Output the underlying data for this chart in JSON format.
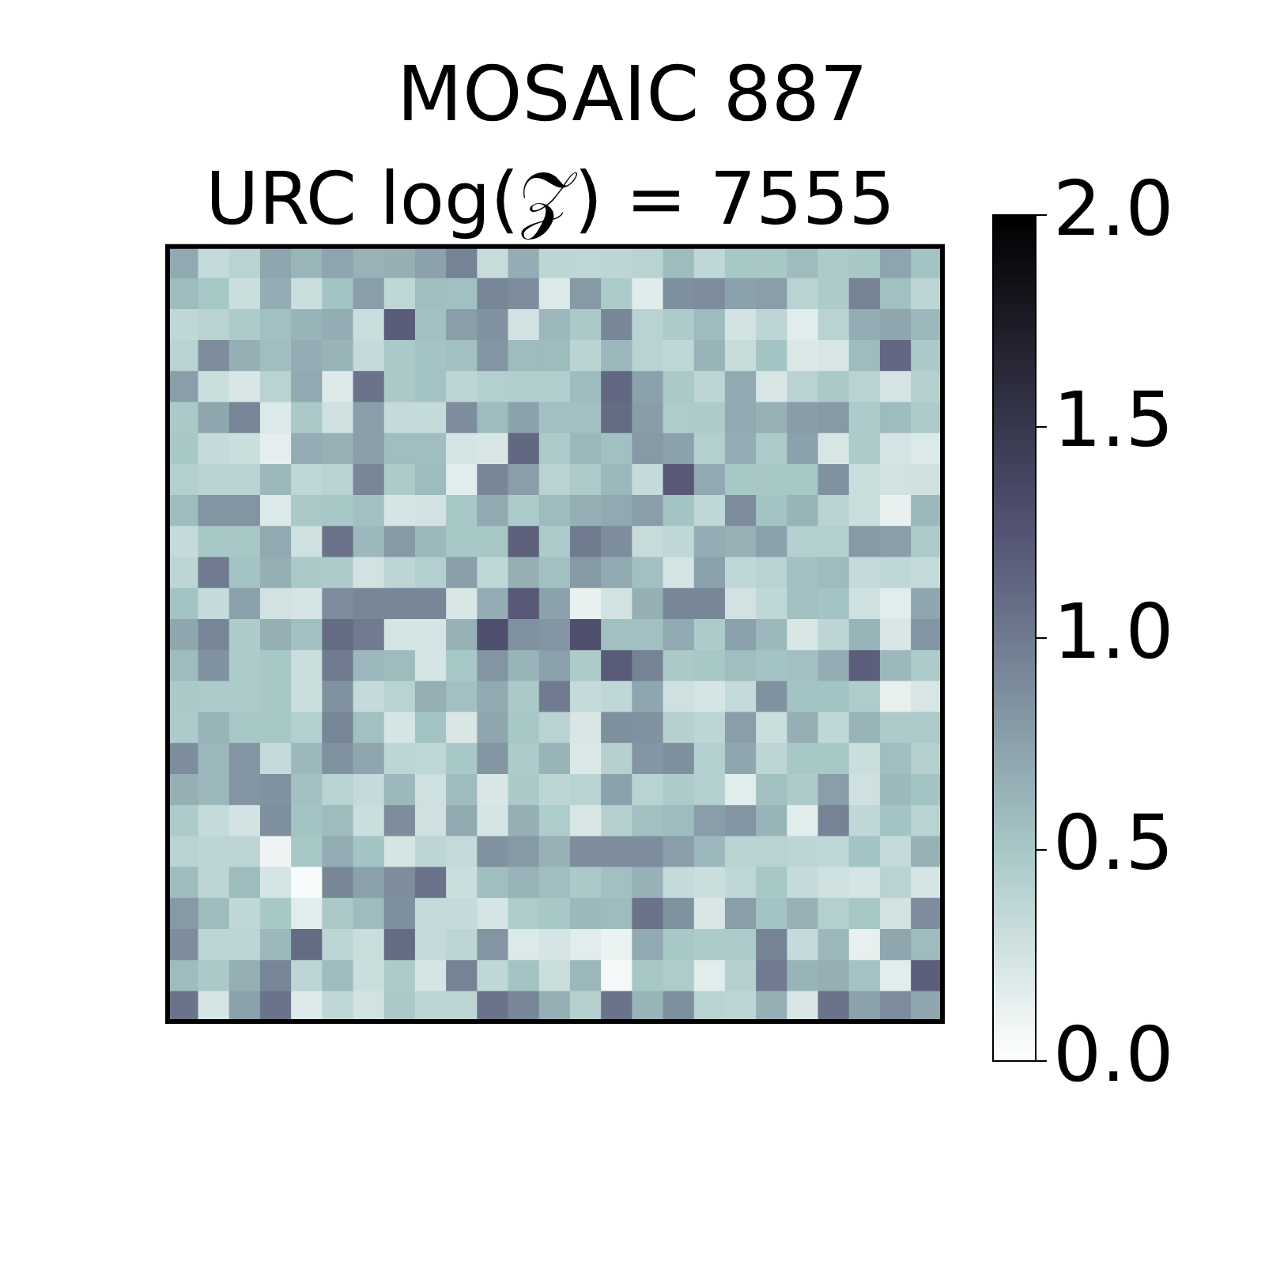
{
  "chart_data": {
    "type": "heatmap",
    "title": "MOSAIC 887",
    "subtitle": "URC log(𝒵) = 7555",
    "categories": [
      null,
      null,
      null,
      null,
      null,
      null,
      null,
      null,
      null,
      null,
      null,
      null,
      null,
      null,
      null,
      null,
      null,
      null,
      null,
      null,
      null,
      null,
      null,
      null,
      null
    ],
    "y_categories": [
      null,
      null,
      null,
      null,
      null,
      null,
      null,
      null,
      null,
      null,
      null,
      null,
      null,
      null,
      null,
      null,
      null,
      null,
      null,
      null,
      null,
      null,
      null,
      null,
      null
    ],
    "cells": [
      [
        0.7,
        0.33,
        0.4,
        0.72,
        0.62,
        0.73,
        0.64,
        0.66,
        0.75,
        0.95,
        0.32,
        0.67,
        0.38,
        0.37,
        0.38,
        0.4,
        0.58,
        0.36,
        0.5,
        0.5,
        0.58,
        0.47,
        0.5,
        0.73,
        0.53
      ],
      [
        0.58,
        0.5,
        0.3,
        0.67,
        0.3,
        0.53,
        0.77,
        0.36,
        0.57,
        0.55,
        0.93,
        0.88,
        0.2,
        0.8,
        0.47,
        0.18,
        0.87,
        0.88,
        0.75,
        0.77,
        0.4,
        0.47,
        0.95,
        0.55,
        0.38
      ],
      [
        0.36,
        0.4,
        0.47,
        0.55,
        0.63,
        0.67,
        0.3,
        1.2,
        0.55,
        0.77,
        0.85,
        0.26,
        0.6,
        0.48,
        0.92,
        0.4,
        0.47,
        0.58,
        0.25,
        0.38,
        0.17,
        0.4,
        0.67,
        0.72,
        0.6
      ],
      [
        0.4,
        0.88,
        0.66,
        0.57,
        0.67,
        0.63,
        0.33,
        0.48,
        0.53,
        0.55,
        0.83,
        0.58,
        0.58,
        0.39,
        0.6,
        0.4,
        0.36,
        0.63,
        0.32,
        0.53,
        0.21,
        0.23,
        0.58,
        1.12,
        0.48
      ],
      [
        0.77,
        0.3,
        0.22,
        0.4,
        0.7,
        0.19,
        1.05,
        0.48,
        0.53,
        0.38,
        0.43,
        0.44,
        0.44,
        0.58,
        1.12,
        0.75,
        0.48,
        0.38,
        0.7,
        0.23,
        0.4,
        0.48,
        0.4,
        0.24,
        0.42
      ],
      [
        0.48,
        0.72,
        0.93,
        0.2,
        0.48,
        0.28,
        0.77,
        0.33,
        0.33,
        0.88,
        0.58,
        0.75,
        0.55,
        0.55,
        1.1,
        0.78,
        0.46,
        0.47,
        0.7,
        0.65,
        0.78,
        0.8,
        0.47,
        0.58,
        0.47
      ],
      [
        0.5,
        0.33,
        0.3,
        0.15,
        0.67,
        0.65,
        0.77,
        0.57,
        0.57,
        0.24,
        0.22,
        1.12,
        0.47,
        0.6,
        0.55,
        0.8,
        0.75,
        0.43,
        0.67,
        0.47,
        0.75,
        0.23,
        0.47,
        0.24,
        0.2
      ],
      [
        0.43,
        0.4,
        0.4,
        0.6,
        0.36,
        0.4,
        0.92,
        0.47,
        0.58,
        0.17,
        0.92,
        0.77,
        0.4,
        0.47,
        0.6,
        0.33,
        1.22,
        0.7,
        0.5,
        0.5,
        0.5,
        0.85,
        0.3,
        0.26,
        0.28
      ],
      [
        0.58,
        0.83,
        0.83,
        0.2,
        0.48,
        0.5,
        0.55,
        0.24,
        0.26,
        0.5,
        0.7,
        0.47,
        0.58,
        0.66,
        0.7,
        0.77,
        0.53,
        0.36,
        0.88,
        0.53,
        0.63,
        0.4,
        0.3,
        0.13,
        0.6
      ],
      [
        0.33,
        0.5,
        0.5,
        0.7,
        0.28,
        1.05,
        0.6,
        0.8,
        0.6,
        0.5,
        0.5,
        1.17,
        0.47,
        1.0,
        0.88,
        0.32,
        0.36,
        0.67,
        0.65,
        0.75,
        0.43,
        0.43,
        0.8,
        0.77,
        0.47
      ],
      [
        0.38,
        1.0,
        0.53,
        0.66,
        0.48,
        0.47,
        0.26,
        0.38,
        0.43,
        0.77,
        0.36,
        0.66,
        0.55,
        0.8,
        0.7,
        0.55,
        0.24,
        0.75,
        0.36,
        0.4,
        0.55,
        0.58,
        0.33,
        0.36,
        0.33
      ],
      [
        0.53,
        0.33,
        0.75,
        0.26,
        0.24,
        0.88,
        0.92,
        0.92,
        0.92,
        0.22,
        0.67,
        1.22,
        0.75,
        0.13,
        0.26,
        0.66,
        0.92,
        0.92,
        0.26,
        0.36,
        0.55,
        0.53,
        0.28,
        0.17,
        0.72
      ],
      [
        0.72,
        0.93,
        0.47,
        0.66,
        0.55,
        1.1,
        1.0,
        0.24,
        0.24,
        0.65,
        1.3,
        0.85,
        0.83,
        1.3,
        0.55,
        0.55,
        0.7,
        0.47,
        0.75,
        0.6,
        0.22,
        0.38,
        0.63,
        0.22,
        0.83
      ],
      [
        0.58,
        0.85,
        0.47,
        0.5,
        0.3,
        1.0,
        0.6,
        0.58,
        0.24,
        0.5,
        0.83,
        0.63,
        0.75,
        0.47,
        1.2,
        0.95,
        0.48,
        0.5,
        0.57,
        0.53,
        0.55,
        0.67,
        1.18,
        0.6,
        0.47
      ],
      [
        0.48,
        0.47,
        0.47,
        0.5,
        0.3,
        0.85,
        0.33,
        0.4,
        0.66,
        0.55,
        0.7,
        0.48,
        1.0,
        0.33,
        0.36,
        0.72,
        0.28,
        0.24,
        0.33,
        0.85,
        0.53,
        0.53,
        0.46,
        0.14,
        0.23
      ],
      [
        0.47,
        0.63,
        0.5,
        0.5,
        0.43,
        0.93,
        0.55,
        0.24,
        0.53,
        0.22,
        0.72,
        0.5,
        0.4,
        0.22,
        0.87,
        0.85,
        0.42,
        0.38,
        0.77,
        0.3,
        0.66,
        0.36,
        0.63,
        0.47,
        0.47
      ],
      [
        0.88,
        0.6,
        0.83,
        0.33,
        0.6,
        0.85,
        0.72,
        0.38,
        0.36,
        0.5,
        0.83,
        0.47,
        0.63,
        0.21,
        0.42,
        0.82,
        0.87,
        0.43,
        0.72,
        0.38,
        0.5,
        0.5,
        0.3,
        0.57,
        0.42
      ],
      [
        0.66,
        0.6,
        0.83,
        0.85,
        0.55,
        0.4,
        0.33,
        0.6,
        0.28,
        0.58,
        0.22,
        0.48,
        0.38,
        0.4,
        0.75,
        0.4,
        0.47,
        0.43,
        0.17,
        0.55,
        0.47,
        0.77,
        0.28,
        0.6,
        0.53
      ],
      [
        0.47,
        0.33,
        0.25,
        0.87,
        0.53,
        0.58,
        0.3,
        0.88,
        0.28,
        0.7,
        0.24,
        0.66,
        0.46,
        0.22,
        0.42,
        0.55,
        0.58,
        0.77,
        0.83,
        0.63,
        0.17,
        0.95,
        0.36,
        0.53,
        0.4
      ],
      [
        0.4,
        0.38,
        0.38,
        0.1,
        0.5,
        0.67,
        0.53,
        0.24,
        0.38,
        0.33,
        0.85,
        0.8,
        0.65,
        0.88,
        0.88,
        0.88,
        0.77,
        0.6,
        0.4,
        0.4,
        0.38,
        0.36,
        0.53,
        0.33,
        0.65
      ],
      [
        0.58,
        0.38,
        0.58,
        0.24,
        0.04,
        0.92,
        0.75,
        0.88,
        1.05,
        0.3,
        0.57,
        0.63,
        0.57,
        0.48,
        0.55,
        0.65,
        0.33,
        0.3,
        0.36,
        0.5,
        0.33,
        0.28,
        0.24,
        0.4,
        0.24
      ],
      [
        0.8,
        0.58,
        0.36,
        0.5,
        0.17,
        0.48,
        0.58,
        0.87,
        0.33,
        0.33,
        0.24,
        0.46,
        0.5,
        0.6,
        0.58,
        1.05,
        0.85,
        0.22,
        0.77,
        0.53,
        0.65,
        0.43,
        0.5,
        0.26,
        0.88
      ],
      [
        0.88,
        0.38,
        0.38,
        0.6,
        1.1,
        0.38,
        0.3,
        1.1,
        0.33,
        0.38,
        0.83,
        0.2,
        0.24,
        0.17,
        0.12,
        0.7,
        0.5,
        0.47,
        0.47,
        0.95,
        0.33,
        0.6,
        0.14,
        0.72,
        0.58
      ],
      [
        0.58,
        0.48,
        0.66,
        0.92,
        0.38,
        0.58,
        0.3,
        0.47,
        0.24,
        0.95,
        0.36,
        0.53,
        0.3,
        0.6,
        0.06,
        0.5,
        0.46,
        0.17,
        0.42,
        1.0,
        0.63,
        0.66,
        0.53,
        0.17,
        1.18
      ],
      [
        1.05,
        0.24,
        0.75,
        1.05,
        0.2,
        0.36,
        0.26,
        0.48,
        0.38,
        0.38,
        1.05,
        0.92,
        0.66,
        0.42,
        1.05,
        0.63,
        0.87,
        0.4,
        0.38,
        0.66,
        0.22,
        1.05,
        0.75,
        0.88,
        0.72
      ]
    ],
    "clim": [
      0,
      2
    ],
    "cticks": [
      {
        "value": 0,
        "label": "0.0"
      },
      0.5,
      {
        "value": 1,
        "label": "1.0"
      },
      1.5,
      {
        "value": 2,
        "label": "2.0"
      }
    ]
  }
}
